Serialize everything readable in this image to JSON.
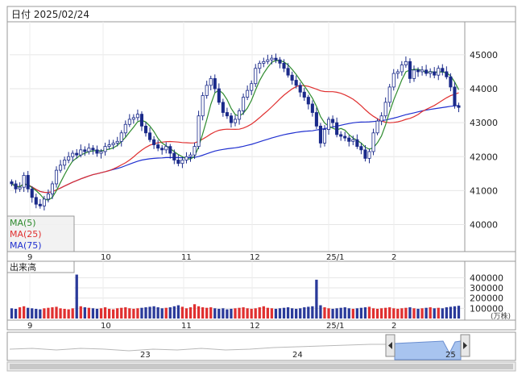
{
  "header": {
    "date_label": "日付 2025/02/24"
  },
  "legend": {
    "ma5": "MA(5)",
    "ma25": "MA(25)",
    "ma75": "MA(75)"
  },
  "volume_panel": {
    "title": "出来高",
    "unit": "(万株)"
  },
  "colors": {
    "up_candle": "#ffffff",
    "down_candle": "#1a2a8a",
    "ma5": "#2e8b2e",
    "ma25": "#e03030",
    "ma75": "#2030d0",
    "volume_normal": "#2a3a9a",
    "volume_high": "#e03030",
    "navigator_fill": "#a8c4ef"
  },
  "chart_data": {
    "type": "candlestick",
    "price_axis": {
      "ticks": [
        "45000",
        "44000",
        "43000",
        "42000",
        "41000",
        "40000"
      ],
      "ylim": [
        39300,
        45900
      ]
    },
    "volume_axis": {
      "ticks": [
        "400000",
        "300000",
        "200000",
        "100000"
      ],
      "ylim": [
        0,
        450000
      ]
    },
    "x_tick_labels": [
      "9",
      "10",
      "11",
      "12",
      "25/1",
      "2"
    ],
    "navigator_labels": [
      "23",
      "24",
      "25"
    ],
    "closes": [
      41200,
      41050,
      41100,
      41450,
      41050,
      40800,
      40600,
      40550,
      40750,
      40900,
      41200,
      41600,
      41750,
      41900,
      42000,
      42100,
      42050,
      42200,
      42150,
      42250,
      42200,
      42100,
      42150,
      42300,
      42350,
      42400,
      42450,
      42700,
      42950,
      43100,
      43150,
      43250,
      42900,
      42700,
      42500,
      42350,
      42250,
      42200,
      42300,
      42100,
      41900,
      41800,
      41900,
      42000,
      42050,
      42300,
      43200,
      43800,
      44100,
      44300,
      44000,
      43600,
      43300,
      43200,
      43000,
      43100,
      43350,
      43750,
      43950,
      44150,
      44600,
      44750,
      44800,
      44850,
      44900,
      44850,
      44750,
      44600,
      44400,
      44250,
      44100,
      43900,
      43750,
      43550,
      43300,
      42900,
      42400,
      42800,
      43100,
      43000,
      42650,
      42600,
      42550,
      42450,
      42500,
      42300,
      42200,
      41950,
      42150,
      42700,
      43050,
      43200,
      43600,
      44050,
      44450,
      44500,
      44700,
      44800,
      44300,
      44550,
      44500,
      44550,
      44450,
      44500,
      44400,
      44600,
      44500,
      44350,
      44050,
      43500,
      43450
    ],
    "volumes": [
      100000,
      95000,
      110000,
      120000,
      105000,
      100000,
      95000,
      90000,
      100000,
      105000,
      110000,
      115000,
      100000,
      95000,
      90000,
      100000,
      430000,
      120000,
      110000,
      105000,
      100000,
      95000,
      100000,
      110000,
      95000,
      90000,
      100000,
      105000,
      110000,
      100000,
      95000,
      100000,
      105000,
      110000,
      115000,
      120000,
      110000,
      100000,
      105000,
      110000,
      120000,
      130000,
      115000,
      100000,
      110000,
      140000,
      120000,
      110000,
      105000,
      110000,
      100000,
      95000,
      100000,
      90000,
      95000,
      100000,
      105000,
      110000,
      100000,
      95000,
      100000,
      110000,
      120000,
      105000,
      100000,
      95000,
      100000,
      105000,
      110000,
      100000,
      95000,
      100000,
      110000,
      115000,
      120000,
      380000,
      130000,
      110000,
      100000,
      95000,
      100000,
      105000,
      110000,
      100000,
      95000,
      100000,
      105000,
      110000,
      115000,
      100000,
      95000,
      100000,
      105000,
      110000,
      100000,
      95000,
      100000,
      105000,
      110000,
      100000,
      95000,
      100000,
      105000,
      110000,
      100000,
      105000,
      100000,
      110000,
      115000,
      120000,
      125000
    ]
  }
}
